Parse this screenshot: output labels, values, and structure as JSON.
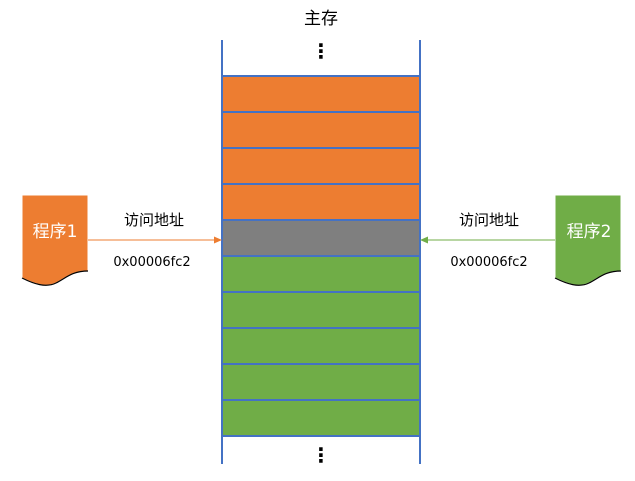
{
  "memory": {
    "title": "主存",
    "ellipsis_top": "⋮",
    "ellipsis_bottom": "⋮",
    "blocks": [
      {
        "owner": "program1",
        "color": "#ED7D31"
      },
      {
        "owner": "program1",
        "color": "#ED7D31"
      },
      {
        "owner": "program1",
        "color": "#ED7D31"
      },
      {
        "owner": "program1",
        "color": "#ED7D31"
      },
      {
        "owner": "shared",
        "color": "#7F7F7F"
      },
      {
        "owner": "program2",
        "color": "#70AD47"
      },
      {
        "owner": "program2",
        "color": "#70AD47"
      },
      {
        "owner": "program2",
        "color": "#70AD47"
      },
      {
        "owner": "program2",
        "color": "#70AD47"
      },
      {
        "owner": "program2",
        "color": "#70AD47"
      }
    ],
    "border_color": "#4472C4"
  },
  "program1": {
    "label": "程序1",
    "color": "#ED7D31",
    "access_label": "访问地址",
    "address": "0x00006fc2"
  },
  "program2": {
    "label": "程序2",
    "color": "#70AD47",
    "access_label": "访问地址",
    "address": "0x00006fc2"
  }
}
